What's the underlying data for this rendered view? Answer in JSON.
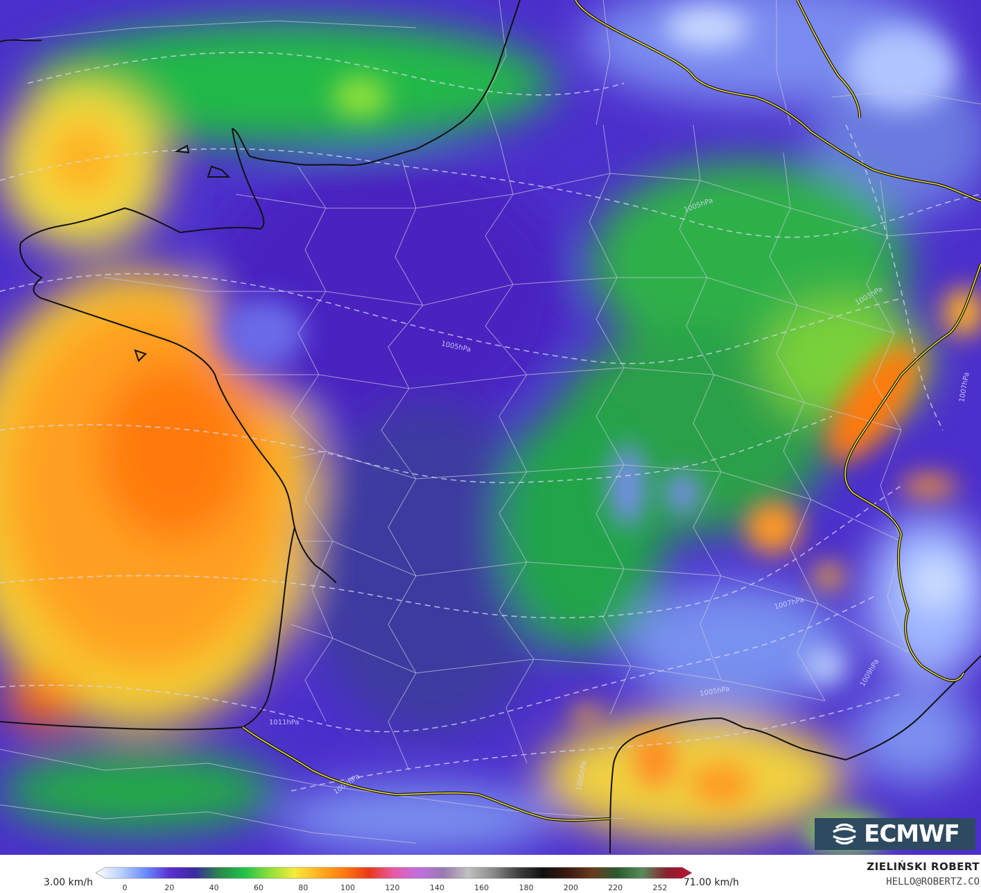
{
  "map": {
    "region": "France",
    "pressure_labels": [
      "1005hPa",
      "1005hPa",
      "1007hPa",
      "1009hPa",
      "1005hPa",
      "1011hPa",
      "1009hPa",
      "1003hPa",
      "1005hPa",
      "1007hPa"
    ]
  },
  "logo": {
    "text": "ECMWF"
  },
  "legend": {
    "min_label": "3.00 km/h",
    "max_label": "71.00 km/h",
    "ticks": [
      "0",
      "20",
      "40",
      "60",
      "80",
      "100",
      "120",
      "140",
      "160",
      "180",
      "200",
      "220",
      "252"
    ],
    "scale_colors": [
      "#ffffff",
      "#bcd2ff",
      "#6a8cff",
      "#5a2ed0",
      "#3a2aa0",
      "#2a8a4a",
      "#22c24a",
      "#8ee03a",
      "#f4ec3a",
      "#ffb020",
      "#ff7a10",
      "#e8381a",
      "#e85aa8",
      "#c070e0",
      "#9a7ab0",
      "#c0c0c0",
      "#8a8a8a",
      "#404040",
      "#101010",
      "#3a1a10",
      "#6a3a20",
      "#2a5a30",
      "#5a8a5a",
      "#8a2030",
      "#c01030"
    ]
  },
  "author": {
    "name": "ZIELIŃSKI ROBERT",
    "email": "HELLO@ROBERTZ.CO"
  }
}
